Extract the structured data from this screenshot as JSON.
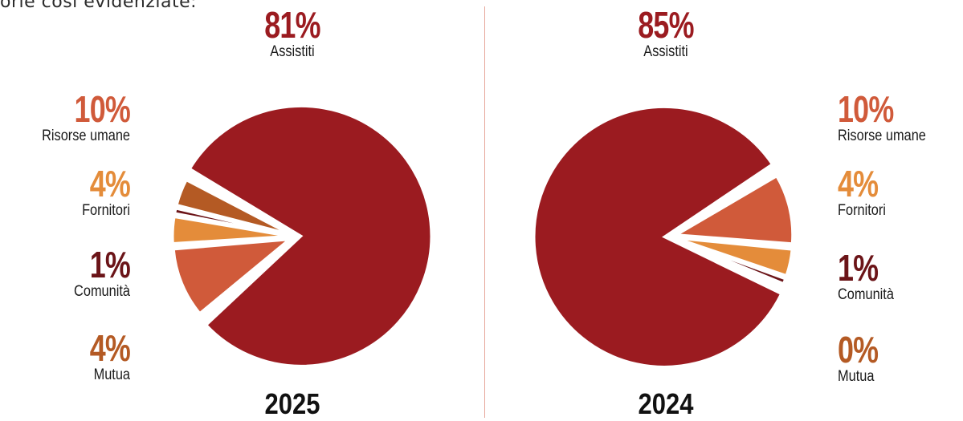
{
  "intro_text": "orie così evidenziate:",
  "colors": {
    "assistiti": "#9b1b20",
    "risorse_umane": "#d05a3a",
    "fornitori": "#e48c3a",
    "comunita": "#6b1418",
    "mutua": "#b45a24",
    "divider": "#e6a79a"
  },
  "chart_data": [
    {
      "type": "pie",
      "year_label": "2025",
      "slices": [
        {
          "name": "Assistiti",
          "value": 81,
          "label": "81%"
        },
        {
          "name": "Risorse umane",
          "value": 10,
          "label": "10%"
        },
        {
          "name": "Fornitori",
          "value": 4,
          "label": "4%"
        },
        {
          "name": "Comunità",
          "value": 1,
          "label": "1%"
        },
        {
          "name": "Mutua",
          "value": 4,
          "label": "4%"
        }
      ]
    },
    {
      "type": "pie",
      "year_label": "2024",
      "slices": [
        {
          "name": "Assistiti",
          "value": 85,
          "label": "85%"
        },
        {
          "name": "Risorse umane",
          "value": 10,
          "label": "10%"
        },
        {
          "name": "Fornitori",
          "value": 4,
          "label": "4%"
        },
        {
          "name": "Comunità",
          "value": 1,
          "label": "1%"
        },
        {
          "name": "Mutua",
          "value": 0,
          "label": "0%"
        }
      ]
    }
  ]
}
